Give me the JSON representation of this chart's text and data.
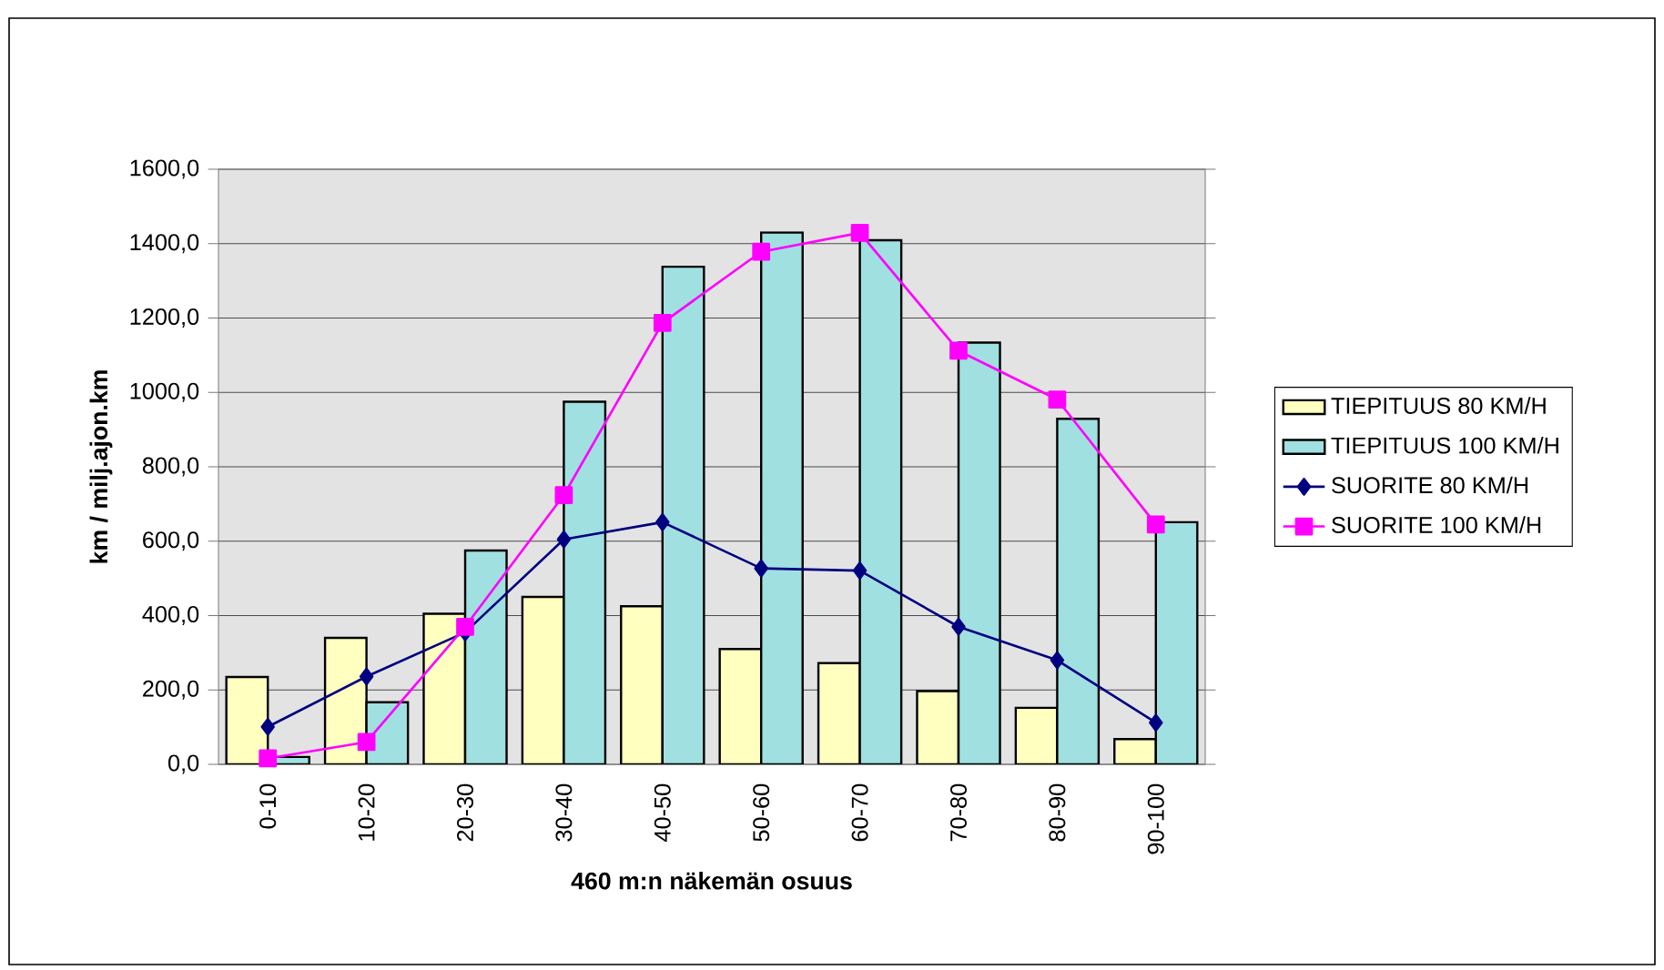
{
  "chart_data": {
    "type": "bar",
    "xlabel": "460 m:n näkemän osuus",
    "ylabel": "km / milj.ajon.km",
    "categories": [
      "0-10",
      "10-20",
      "20-30",
      "30-40",
      "40-50",
      "50-60",
      "60-70",
      "70-80",
      "80-90",
      "90-100"
    ],
    "series": [
      {
        "name": "TIEPITUUS 80 KM/H",
        "color": "#ffffc0",
        "values": [
          235,
          340,
          405,
          450,
          425,
          310,
          272,
          197,
          152,
          68
        ]
      },
      {
        "name": "TIEPITUUS 100 KM/H",
        "color": "#a0e0e0",
        "values": [
          20,
          167,
          575,
          975,
          1338,
          1430,
          1409,
          1134,
          929,
          651
        ]
      },
      {
        "name": "SUORITE 80 KM/H",
        "type": "line",
        "marker": "diamond",
        "color": "#000080",
        "values": [
          101,
          236,
          355,
          605,
          651,
          527,
          521,
          370,
          280,
          112
        ]
      },
      {
        "name": "SUORITE 100 KM/H",
        "type": "line",
        "marker": "square",
        "color": "#ff00ff",
        "values": [
          16,
          60,
          370,
          724,
          1187,
          1378,
          1429,
          1112,
          981,
          645
        ]
      }
    ],
    "ylim": [
      0,
      1600
    ],
    "yticks": [
      {
        "value": 0,
        "label": "0,0"
      },
      {
        "value": 200,
        "label": "200,0"
      },
      {
        "value": 400,
        "label": "400,0"
      },
      {
        "value": 600,
        "label": "600,0"
      },
      {
        "value": 800,
        "label": "800,0"
      },
      {
        "value": 1000,
        "label": "1000,0"
      },
      {
        "value": 1200,
        "label": "1200,0"
      },
      {
        "value": 1400,
        "label": "1400,0"
      },
      {
        "value": 1600,
        "label": "1600,0"
      }
    ],
    "grid": "y",
    "legend": "right"
  }
}
